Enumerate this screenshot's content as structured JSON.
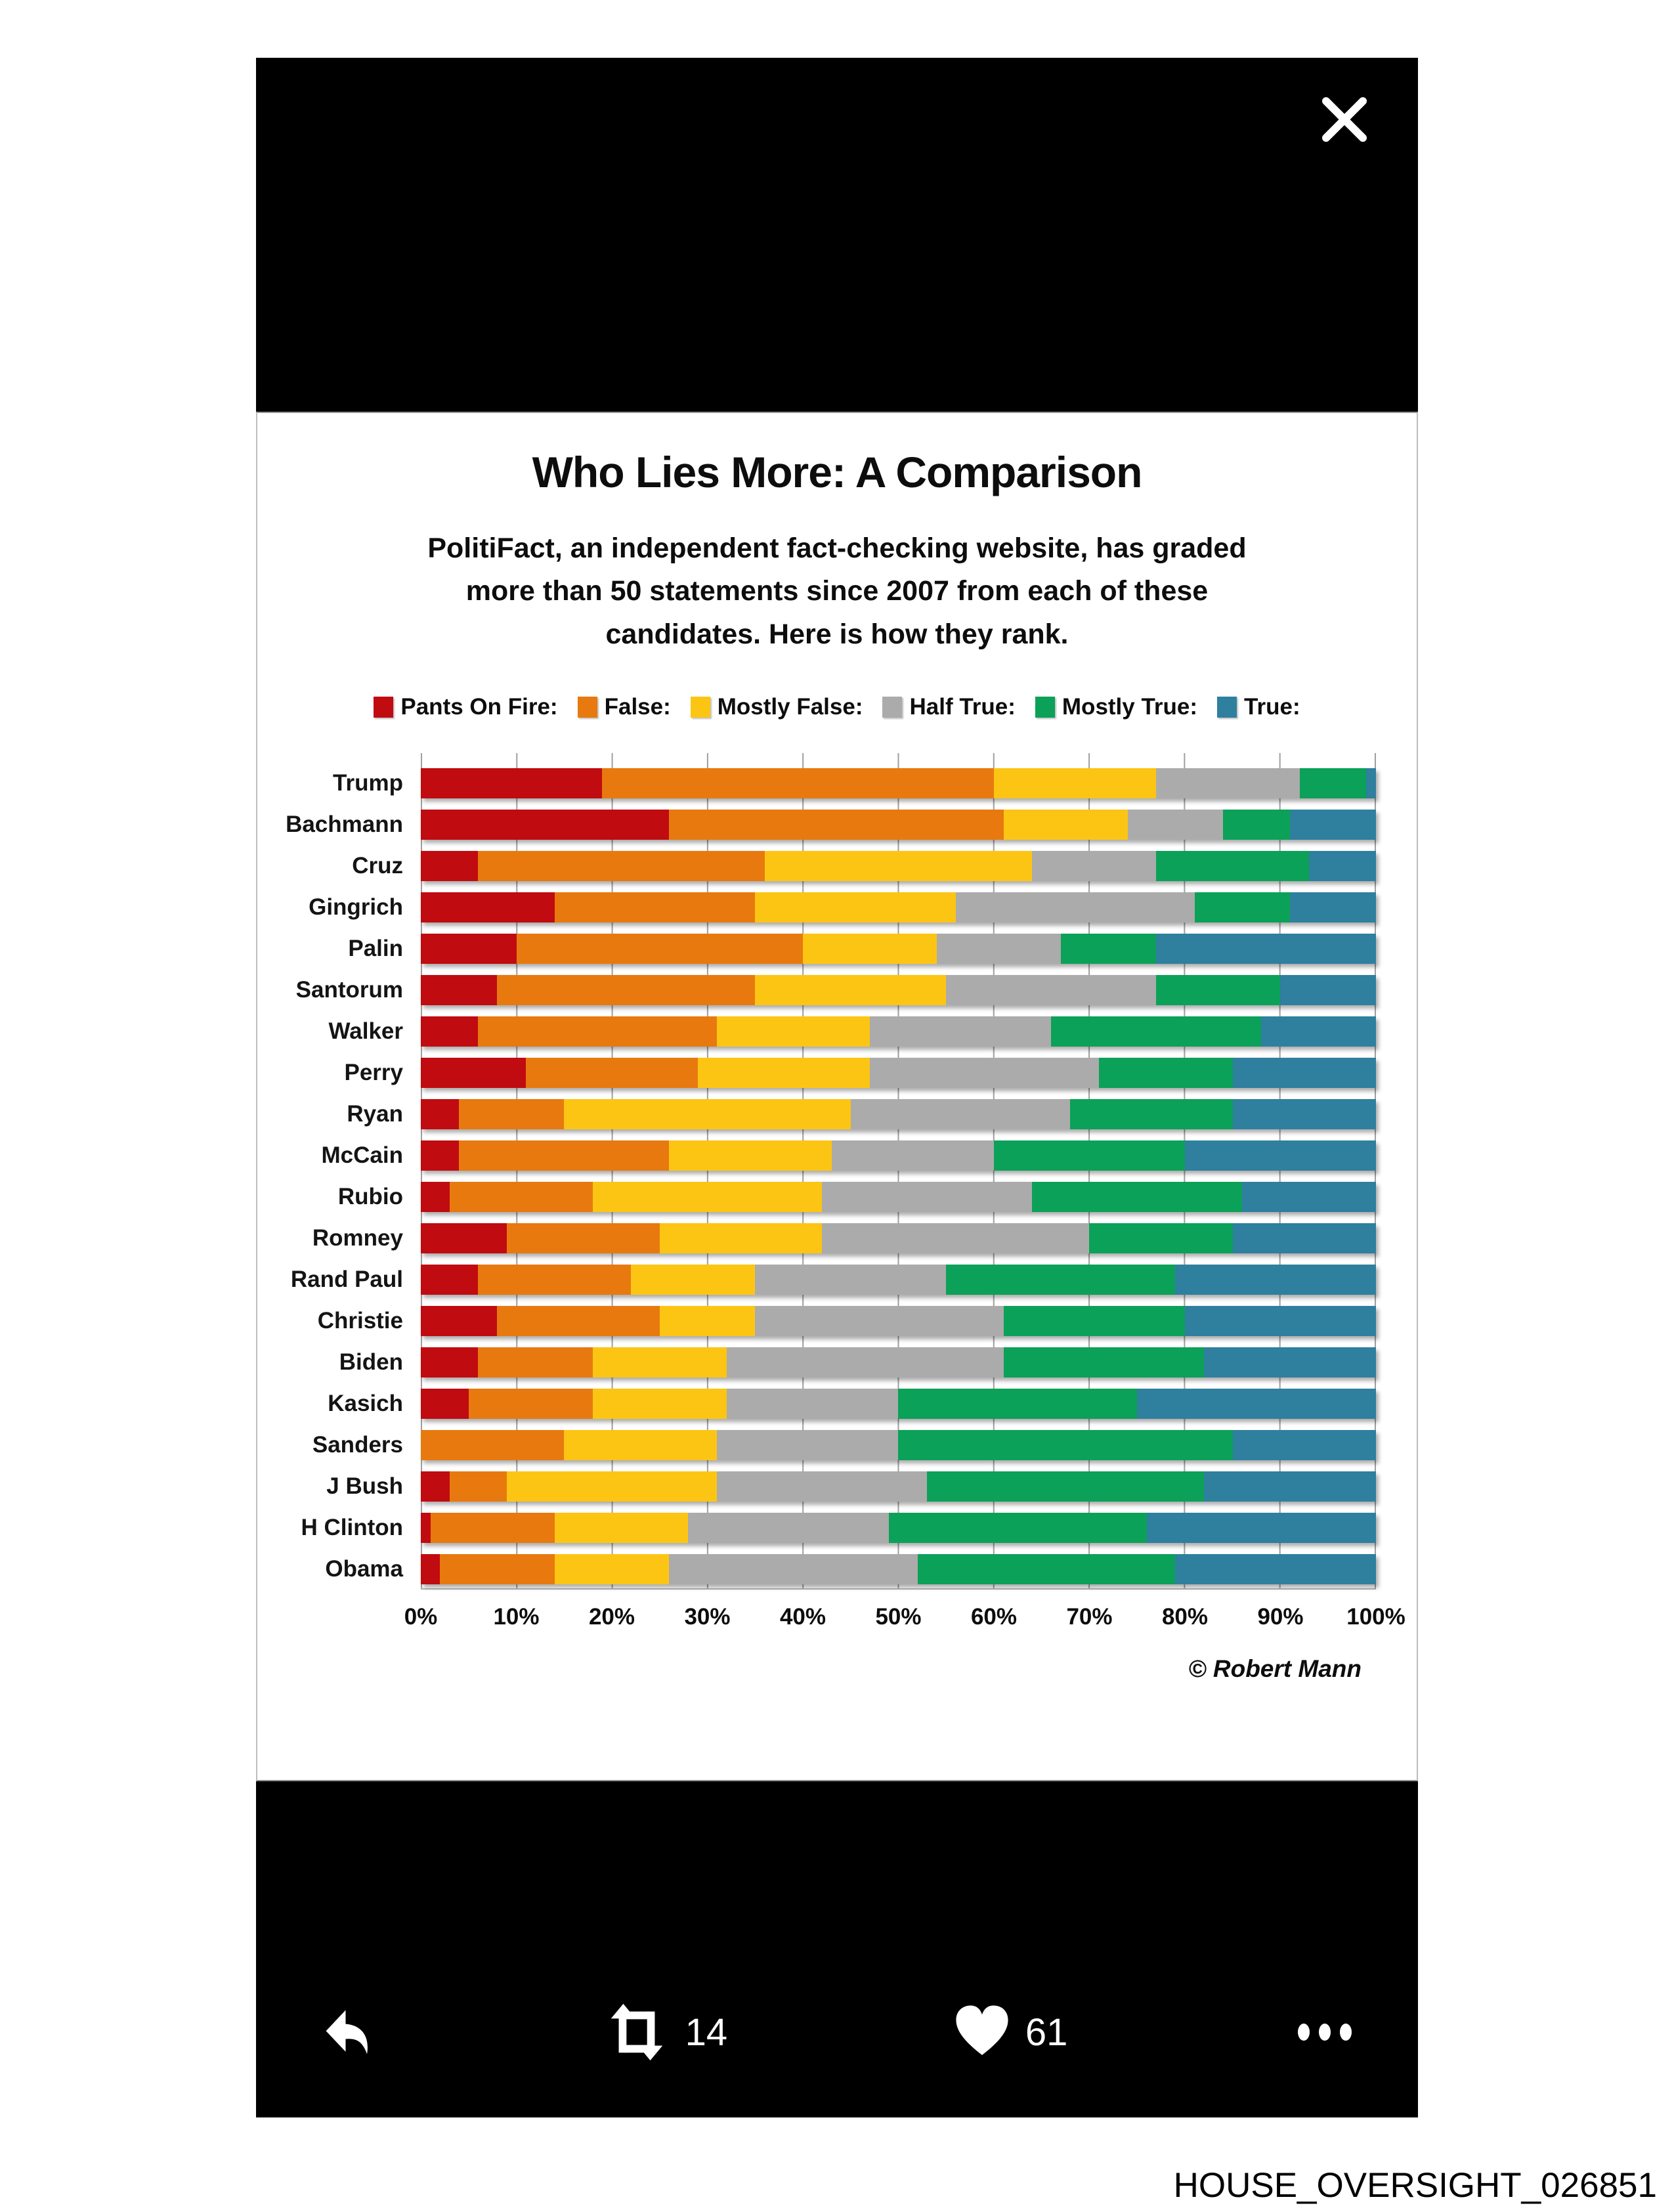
{
  "panel": {
    "icons": {
      "close": "✕",
      "reply": "↩",
      "retweet": "⇄",
      "like": "♥",
      "more": "•••"
    }
  },
  "actions": {
    "retweet_count": "14",
    "like_count": "61"
  },
  "watermark": "HOUSE_OVERSIGHT_026851",
  "chart_data": {
    "type": "bar",
    "orientation": "horizontal-stacked",
    "title": "Who Lies More: A Comparison",
    "subtitle_lines": [
      "PolitiFact, an independent fact-checking website, has graded",
      "more than 50 statements since 2007 from each of these",
      "candidates. Here is how they rank."
    ],
    "attribution": "© Robert Mann",
    "legend_position": "top",
    "grid": true,
    "xlabel": "",
    "ylabel": "",
    "xlim": [
      0,
      100
    ],
    "x_ticks": [
      "0%",
      "10%",
      "20%",
      "30%",
      "40%",
      "50%",
      "60%",
      "70%",
      "80%",
      "90%",
      "100%"
    ],
    "categories": [
      "Trump",
      "Bachmann",
      "Cruz",
      "Gingrich",
      "Palin",
      "Santorum",
      "Walker",
      "Perry",
      "Ryan",
      "McCain",
      "Rubio",
      "Romney",
      "Rand Paul",
      "Christie",
      "Biden",
      "Kasich",
      "Sanders",
      "J Bush",
      "H Clinton",
      "Obama"
    ],
    "series": [
      {
        "name": "Pants On Fire:",
        "color": "#c00b10",
        "values": [
          19,
          26,
          6,
          14,
          10,
          8,
          6,
          11,
          4,
          4,
          3,
          9,
          6,
          8,
          6,
          5,
          0,
          3,
          1,
          2
        ]
      },
      {
        "name": "False:",
        "color": "#e8790f",
        "values": [
          41,
          35,
          30,
          21,
          30,
          27,
          25,
          18,
          11,
          22,
          15,
          16,
          16,
          17,
          12,
          13,
          15,
          6,
          13,
          12
        ]
      },
      {
        "name": "Mostly False:",
        "color": "#fdc513",
        "values": [
          17,
          13,
          28,
          21,
          14,
          20,
          16,
          18,
          30,
          17,
          24,
          17,
          13,
          10,
          14,
          14,
          16,
          22,
          14,
          12
        ]
      },
      {
        "name": "Half True:",
        "color": "#ababab",
        "values": [
          15,
          10,
          13,
          25,
          13,
          22,
          19,
          24,
          23,
          17,
          22,
          28,
          20,
          26,
          29,
          18,
          19,
          22,
          21,
          26
        ]
      },
      {
        "name": "Mostly True:",
        "color": "#0ba158",
        "values": [
          7,
          7,
          16,
          10,
          10,
          13,
          22,
          14,
          17,
          20,
          22,
          15,
          24,
          19,
          21,
          25,
          35,
          29,
          27,
          27
        ]
      },
      {
        "name": "True:",
        "color": "#2f7f9e",
        "values": [
          1,
          9,
          7,
          9,
          23,
          10,
          12,
          15,
          15,
          20,
          14,
          15,
          21,
          20,
          18,
          25,
          15,
          18,
          24,
          21
        ]
      }
    ]
  }
}
